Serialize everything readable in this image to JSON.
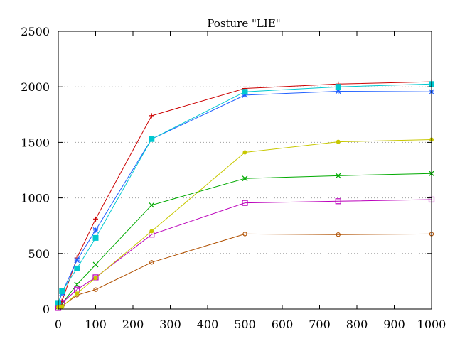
{
  "chart_data": {
    "type": "line",
    "title": "Posture \"LIE\"",
    "xlabel": "",
    "ylabel": "",
    "xlim": [
      0,
      1000
    ],
    "ylim": [
      0,
      2500
    ],
    "x_ticks": [
      "0",
      "100",
      "200",
      "300",
      "400",
      "500",
      "600",
      "700",
      "800",
      "900",
      "1000"
    ],
    "y_ticks": [
      "0",
      "500",
      "1000",
      "1500",
      "2000",
      "2500"
    ],
    "grid": "horizontal dotted",
    "legend": "none",
    "x": [
      0,
      10,
      50,
      100,
      250,
      500,
      750,
      1000
    ],
    "series": [
      {
        "color": "#cc0000",
        "marker": "plus",
        "values": [
          40,
          70,
          460,
          810,
          1740,
          1985,
          2025,
          2045
        ]
      },
      {
        "color": "#00aa00",
        "marker": "cross",
        "values": [
          20,
          50,
          220,
          400,
          935,
          1175,
          1200,
          1220
        ]
      },
      {
        "color": "#2060ff",
        "marker": "star",
        "values": [
          45,
          145,
          440,
          710,
          1530,
          1925,
          1960,
          1955
        ]
      },
      {
        "color": "#bb00bb",
        "marker": "square-open",
        "values": [
          10,
          55,
          175,
          285,
          670,
          955,
          970,
          985
        ]
      },
      {
        "color": "#00c8d0",
        "marker": "square-filled",
        "values": [
          55,
          160,
          365,
          640,
          1530,
          1955,
          2000,
          2025
        ]
      },
      {
        "color": "#b05000",
        "marker": "circle-open",
        "values": [
          15,
          25,
          125,
          175,
          420,
          675,
          670,
          675
        ]
      },
      {
        "color": "#c8c800",
        "marker": "circle-filled",
        "values": [
          15,
          20,
          140,
          280,
          700,
          1410,
          1505,
          1525
        ]
      }
    ]
  }
}
